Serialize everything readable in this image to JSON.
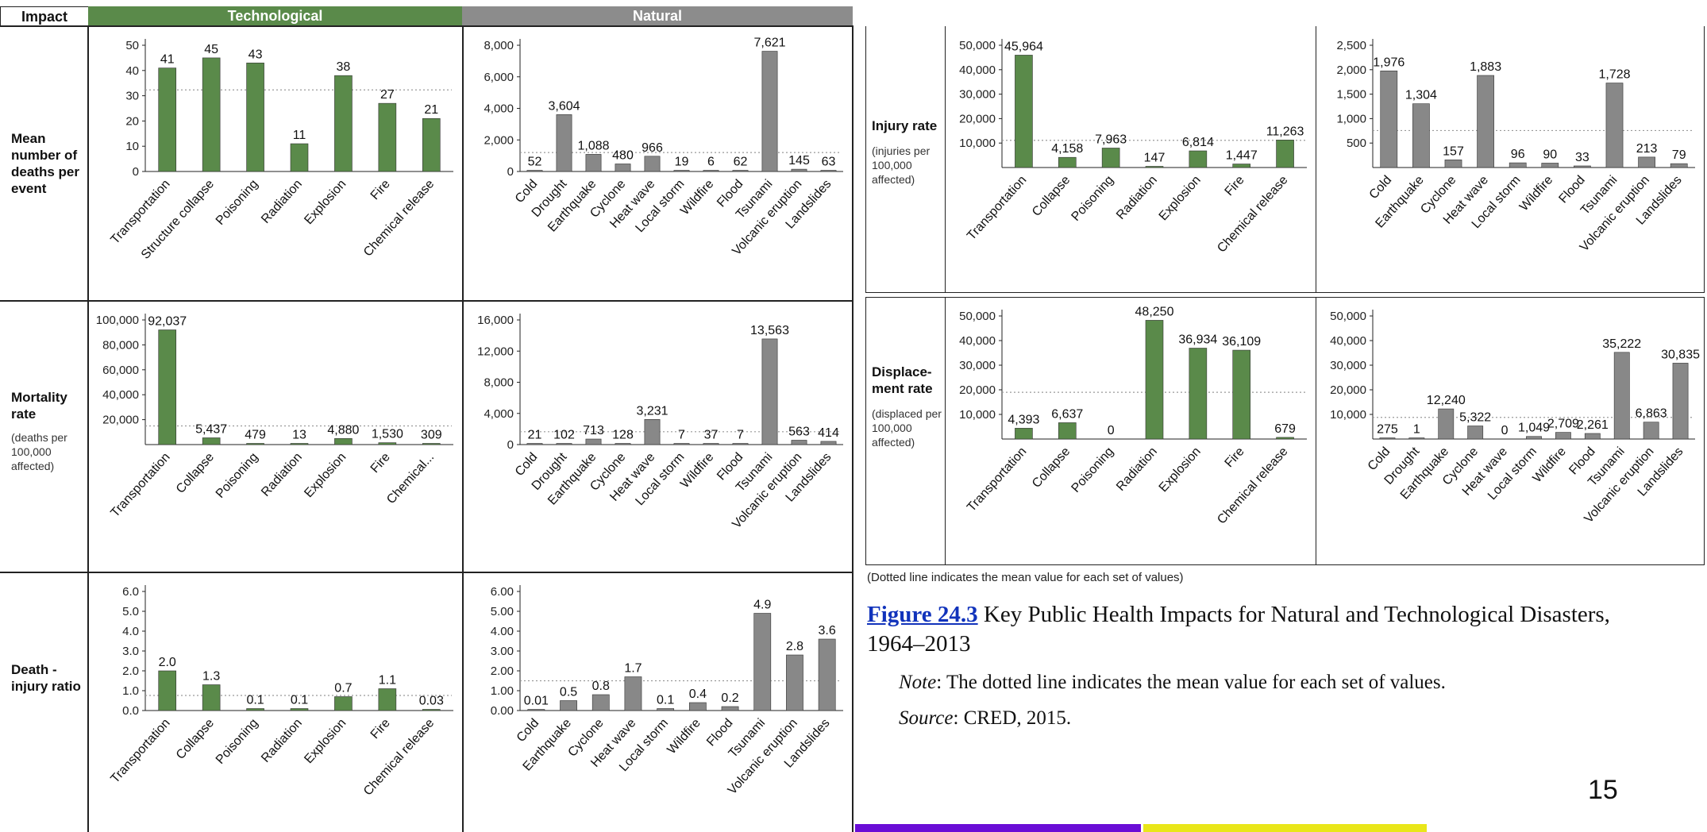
{
  "header": {
    "impact": "Impact",
    "technological": "Technological",
    "natural": "Natural"
  },
  "row_labels": {
    "mean_deaths": "Mean number of deaths per event",
    "mortality": "Mortality rate",
    "mortality_note": "(deaths per 100,000 affected)",
    "death_injury": "Death - injury ratio",
    "injury": "Injury rate",
    "injury_note": "(injuries per 100,000 affected)",
    "displacement": "Displace- ment rate",
    "displacement_note": "(displaced per 100,000 affected)"
  },
  "colors": {
    "technological": "#5a8a4a",
    "natural": "#888888",
    "header_tech": "#5a8a4a",
    "header_nat": "#8c8c8c",
    "link": "#1133bb",
    "strip_left": "#6a0dd6",
    "strip_right": "#e9e619"
  },
  "dotted_note": "(Dotted line indicates the mean value for each set of values)",
  "caption": {
    "link": "Figure 24.3",
    "title": " Key Public Health Impacts for Natural and Technological Disasters, 1964–2013",
    "note_label": "Note",
    "note_text": ": The dotted line indicates the mean value for each set of values.",
    "source_label": "Source",
    "source_text": ": CRED, 2015."
  },
  "page_number": "15",
  "chart_data": [
    {
      "id": "mean-deaths-tech",
      "type": "bar",
      "categories": [
        "Transportation",
        "Structure collapse",
        "Poisoning",
        "Radiation",
        "Explosion",
        "Fire",
        "Chemical release"
      ],
      "values": [
        41,
        45,
        43,
        11,
        38,
        27,
        21
      ],
      "labels": [
        "41",
        "45",
        "43",
        "11",
        "38",
        "27",
        "21"
      ],
      "ylim": [
        0,
        50
      ],
      "yticks": [
        0,
        10,
        20,
        30,
        40,
        50
      ],
      "ytick_labels": [
        "0",
        "10",
        "20",
        "30",
        "40",
        "50"
      ],
      "mean": 32.3,
      "color": "#5a8a4a"
    },
    {
      "id": "mean-deaths-nat",
      "type": "bar",
      "categories": [
        "Cold",
        "Drought",
        "Earthquake",
        "Cyclone",
        "Heat wave",
        "Local storm",
        "Wildfire",
        "Flood",
        "Tsunami",
        "Volcanic eruption",
        "Landslides"
      ],
      "values": [
        52,
        3604,
        1088,
        480,
        966,
        19,
        6,
        62,
        7621,
        145,
        63
      ],
      "labels": [
        "52",
        "3,604",
        "1,088",
        "480",
        "966",
        "19",
        "6",
        "62",
        "7,621",
        "145",
        "63"
      ],
      "ylim": [
        0,
        8000
      ],
      "yticks": [
        0,
        2000,
        4000,
        6000,
        8000
      ],
      "ytick_labels": [
        "0",
        "2,000",
        "4,000",
        "6,000",
        "8,000"
      ],
      "mean": 1200,
      "color": "#888888"
    },
    {
      "id": "mortality-tech",
      "type": "bar",
      "categories": [
        "Transportation",
        "Collapse",
        "Poisoning",
        "Radiation",
        "Explosion",
        "Fire",
        "Chemical..."
      ],
      "values": [
        92037,
        5437,
        479,
        13,
        4880,
        1530,
        309
      ],
      "labels": [
        "92,037",
        "5,437",
        "479",
        "13",
        "4,880",
        "1,530",
        "309"
      ],
      "ylim": [
        0,
        100000
      ],
      "yticks": [
        20000,
        40000,
        60000,
        80000,
        100000
      ],
      "ytick_labels": [
        "20,000",
        "40,000",
        "60,000",
        "80,000",
        "100,000"
      ],
      "mean": 14955,
      "color": "#5a8a4a"
    },
    {
      "id": "mortality-nat",
      "type": "bar",
      "categories": [
        "Cold",
        "Drought",
        "Earthquake",
        "Cyclone",
        "Heat wave",
        "Local storm",
        "Wildfire",
        "Flood",
        "Tsunami",
        "Volcanic eruption",
        "Landslides"
      ],
      "values": [
        21,
        102,
        713,
        128,
        3231,
        7,
        37,
        7,
        13563,
        563,
        414
      ],
      "labels": [
        "21",
        "102",
        "713",
        "128",
        "3,231",
        "7",
        "37",
        "7",
        "13,563",
        "563",
        "414"
      ],
      "ylim": [
        0,
        16000
      ],
      "yticks": [
        0,
        4000,
        8000,
        12000,
        16000
      ],
      "ytick_labels": [
        "0",
        "4,000",
        "8,000",
        "12,000",
        "16,000"
      ],
      "mean": 1650,
      "color": "#888888"
    },
    {
      "id": "death-injury-tech",
      "type": "bar",
      "categories": [
        "Transportation",
        "Collapse",
        "Poisoning",
        "Radiation",
        "Explosion",
        "Fire",
        "Chemical release"
      ],
      "values": [
        2.0,
        1.3,
        0.1,
        0.1,
        0.7,
        1.1,
        0.03
      ],
      "labels": [
        "2.0",
        "1.3",
        "0.1",
        "0.1",
        "0.7",
        "1.1",
        "0.03"
      ],
      "ylim": [
        0,
        6
      ],
      "yticks": [
        0,
        1,
        2,
        3,
        4,
        5,
        6
      ],
      "ytick_labels": [
        "0.0",
        "1.0",
        "2.0",
        "3.0",
        "4.0",
        "5.0",
        "6.0"
      ],
      "mean": 0.76,
      "color": "#5a8a4a"
    },
    {
      "id": "death-injury-nat",
      "type": "bar",
      "categories": [
        "Cold",
        "Earthquake",
        "Cyclone",
        "Heat wave",
        "Local storm",
        "Wildfire",
        "Flood",
        "Tsunami",
        "Volcanic eruption",
        "Landslides"
      ],
      "values": [
        0.01,
        0.5,
        0.8,
        1.7,
        0.1,
        0.4,
        0.2,
        4.9,
        2.8,
        3.6
      ],
      "labels": [
        "0.01",
        "0.5",
        "0.8",
        "1.7",
        "0.1",
        "0.4",
        "0.2",
        "4.9",
        "2.8",
        "3.6"
      ],
      "ylim": [
        0,
        6
      ],
      "yticks": [
        0,
        1,
        2,
        3,
        4,
        5,
        6
      ],
      "ytick_labels": [
        "0.00",
        "1.00",
        "2.00",
        "3.00",
        "4.00",
        "5.00",
        "6.00"
      ],
      "mean": 1.5,
      "color": "#888888"
    },
    {
      "id": "injury-tech",
      "type": "bar",
      "categories": [
        "Transportation",
        "Collapse",
        "Poisoning",
        "Radiation",
        "Explosion",
        "Fire",
        "Chemical release"
      ],
      "values": [
        45964,
        4158,
        7963,
        147,
        6814,
        1447,
        11263
      ],
      "labels": [
        "45,964",
        "4,158",
        "7,963",
        "147",
        "6,814",
        "1,447",
        "11,263"
      ],
      "ylim": [
        0,
        50000
      ],
      "yticks": [
        10000,
        20000,
        30000,
        40000,
        50000
      ],
      "ytick_labels": [
        "10,000",
        "20,000",
        "30,000",
        "40,000",
        "50,000"
      ],
      "mean": 11108,
      "color": "#5a8a4a"
    },
    {
      "id": "injury-nat",
      "type": "bar",
      "categories": [
        "Cold",
        "Earthquake",
        "Cyclone",
        "Heat wave",
        "Local storm",
        "Wildfire",
        "Flood",
        "Tsunami",
        "Volcanic eruption",
        "Landslides"
      ],
      "values": [
        1976,
        1304,
        157,
        1883,
        96,
        90,
        33,
        1728,
        213,
        79
      ],
      "labels": [
        "1,976",
        "1,304",
        "157",
        "1,883",
        "96",
        "90",
        "33",
        "1,728",
        "213",
        "79"
      ],
      "ylim": [
        0,
        2500
      ],
      "yticks": [
        500,
        1000,
        1500,
        2000,
        2500
      ],
      "ytick_labels": [
        "500",
        "1,000",
        "1,500",
        "2,000",
        "2,500"
      ],
      "mean": 756,
      "color": "#888888"
    },
    {
      "id": "displacement-tech",
      "type": "bar",
      "categories": [
        "Transportation",
        "Collapse",
        "Poisoning",
        "Radiation",
        "Explosion",
        "Fire",
        "Chemical release"
      ],
      "values": [
        4393,
        6637,
        0,
        48250,
        36934,
        36109,
        679
      ],
      "labels": [
        "4,393",
        "6,637",
        "0",
        "48,250",
        "36,934",
        "36,109",
        "679"
      ],
      "ylim": [
        0,
        50000
      ],
      "yticks": [
        10000,
        20000,
        30000,
        40000,
        50000
      ],
      "ytick_labels": [
        "10,000",
        "20,000",
        "30,000",
        "40,000",
        "50,000"
      ],
      "mean": 19000,
      "color": "#5a8a4a"
    },
    {
      "id": "displacement-nat",
      "type": "bar",
      "categories": [
        "Cold",
        "Drought",
        "Earthquake",
        "Cyclone",
        "Heat wave",
        "Local storm",
        "Wildfire",
        "Flood",
        "Tsunami",
        "Volcanic eruption",
        "Landslides"
      ],
      "values": [
        275,
        1,
        12240,
        5322,
        0,
        1049,
        2709,
        2261,
        35222,
        6863,
        30835
      ],
      "labels": [
        "275",
        "1",
        "12,240",
        "5,322",
        "0",
        "1,049",
        "2,709",
        "2,261",
        "35,222",
        "6,863",
        "30,835"
      ],
      "ylim": [
        0,
        50000
      ],
      "yticks": [
        10000,
        20000,
        30000,
        40000,
        50000
      ],
      "ytick_labels": [
        "10,000",
        "20,000",
        "30,000",
        "40,000",
        "50,000"
      ],
      "mean": 8800,
      "color": "#888888"
    }
  ]
}
